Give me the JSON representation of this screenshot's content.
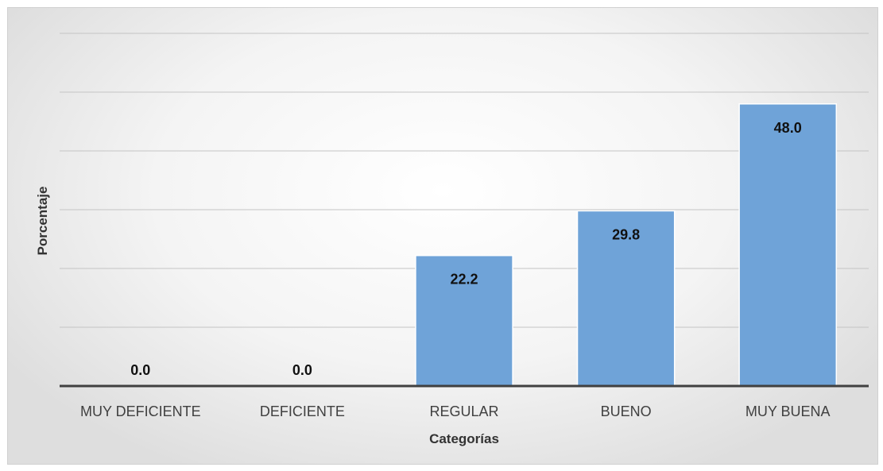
{
  "chart_data": {
    "type": "bar",
    "title": "",
    "xlabel": "Categorías",
    "ylabel": "Porcentaje",
    "categories": [
      "MUY DEFICIENTE",
      "DEFICIENTE",
      "REGULAR",
      "BUENO",
      "MUY BUENA"
    ],
    "values": [
      0.0,
      0.0,
      22.2,
      29.8,
      48.0
    ],
    "data_labels": [
      "0.0",
      "0.0",
      "22.2",
      "29.8",
      "48.0"
    ],
    "ylim": [
      0,
      60
    ],
    "grid": true,
    "legend": "none",
    "bar_color": "#6fa3d8"
  }
}
